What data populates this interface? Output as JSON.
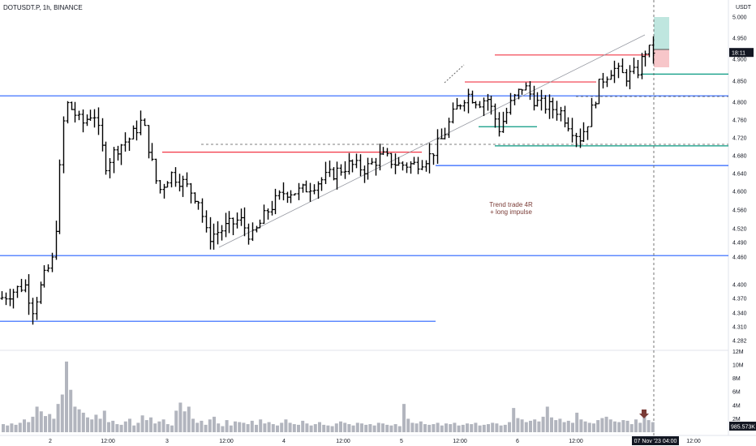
{
  "header": {
    "symbol": "DOTUSDT.P, 1h, BINANCE",
    "currency": "USDT"
  },
  "price_axis": {
    "labels": [
      "5.000",
      "4.950",
      "4.900",
      "4.850",
      "4.800",
      "4.760",
      "4.720",
      "4.680",
      "4.640",
      "4.600",
      "4.560",
      "4.520",
      "4.490",
      "4.460",
      "4.400",
      "4.370",
      "4.340",
      "4.310",
      "4.282"
    ]
  },
  "volume_axis": {
    "labels": [
      "12M",
      "10M",
      "8M",
      "6M",
      "4M",
      "2M"
    ]
  },
  "badges": {
    "last_value": "18:11",
    "volume_value": "985.573K"
  },
  "time_axis": {
    "labels": [
      "2",
      "12:00",
      "3",
      "12:00",
      "4",
      "12:00",
      "5",
      "12:00",
      "6",
      "12:00",
      "12:00"
    ],
    "crosshair_label": "07 Nov '23   04:00"
  },
  "annotation": {
    "line1": "Trend trade 4R",
    "line2": "+ long impulse"
  },
  "colors": {
    "up": "#000000",
    "blue_level": "#2962ff",
    "red_level": "#f23645",
    "green_level": "#089981",
    "volume": "#b2b5be",
    "target_zone": "#bfe6df",
    "stop_zone": "#f7c6c9",
    "marker": "#7a3b36"
  },
  "chart_data": {
    "type": "ohlc",
    "timeframe": "1h",
    "ylim": [
      4.27,
      5.02
    ],
    "levels": [
      {
        "color": "blue",
        "price": 4.815
      },
      {
        "color": "blue",
        "price": 4.463
      },
      {
        "color": "blue",
        "price": 4.322
      },
      {
        "color": "blue",
        "price": 4.658
      },
      {
        "color": "red",
        "price": 4.688
      },
      {
        "color": "red",
        "price": 4.848
      },
      {
        "color": "red",
        "price": 4.91
      },
      {
        "color": "green",
        "price": 4.745
      },
      {
        "color": "green",
        "price": 4.702
      },
      {
        "color": "green",
        "price": 4.866
      }
    ],
    "volume_approx_M": [
      1.2,
      1.0,
      1.3,
      1.1,
      1.4,
      1.9,
      1.5,
      2.3,
      3.8,
      3.1,
      2.4,
      2.7,
      2.0,
      4.2,
      5.6,
      10.5,
      6.3,
      3.8,
      3.4,
      2.9,
      2.2,
      1.9,
      2.6,
      2.0,
      3.2,
      1.5,
      1.7,
      1.2,
      1.1,
      1.6,
      2.0,
      1.0,
      1.4,
      2.5,
      1.8,
      2.2,
      1.3,
      1.6,
      1.9,
      1.2,
      1.0,
      3.2,
      4.4,
      3.1,
      3.8,
      2.0,
      1.4,
      1.7,
      1.1,
      1.9,
      2.3,
      1.3,
      0.9,
      1.8,
      1.0,
      1.6,
      1.5,
      1.4,
      1.2,
      1.7,
      1.1,
      1.9,
      1.3,
      1.5,
      1.2,
      1.0,
      1.4,
      1.9,
      1.4,
      1.2,
      1.1,
      1.7,
      1.3,
      1.0,
      1.2,
      1.5,
      1.1,
      1.0,
      0.9,
      1.3,
      1.6,
      1.4,
      1.2,
      1.0,
      1.4,
      1.3,
      1.1,
      1.2,
      1.0,
      1.4,
      1.3,
      1.1,
      1.0,
      1.2,
      0.9,
      4.2,
      2.0,
      1.4,
      1.3,
      1.6,
      1.2,
      1.1,
      1.2,
      1.4,
      1.0,
      1.3,
      1.2,
      1.4,
      1.0,
      1.1,
      1.3,
      1.2,
      1.4,
      1.0,
      1.1,
      1.2,
      1.4,
      1.3,
      1.0,
      1.1,
      1.5,
      3.6,
      2.1,
      1.9,
      1.5,
      1.7,
      1.9,
      1.6,
      2.3,
      3.8,
      2.2,
      1.8,
      2.0,
      1.5,
      1.7,
      1.4,
      2.9,
      1.9,
      1.6,
      1.4,
      1.3,
      1.8,
      2.1,
      2.3,
      1.9,
      1.6,
      1.5,
      1.8,
      1.7,
      1.2,
      1.9,
      1.4,
      2.3,
      1.8,
      1.5
    ]
  }
}
